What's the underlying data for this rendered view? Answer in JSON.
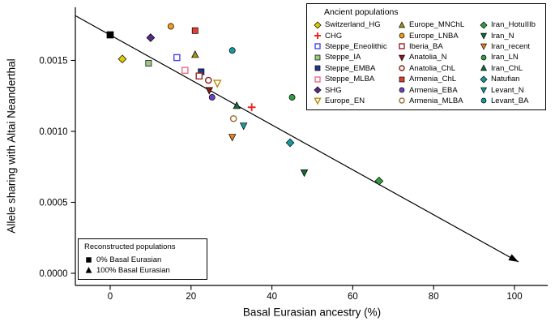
{
  "figure": {
    "x_axis_label": "Basal Eurasian ancestry (%)",
    "y_axis_label": "Allele sharing with Altai Neanderthal"
  },
  "legend": {
    "title": "Ancient populations"
  },
  "reconstructed_legend": {
    "title": "Reconstructed populations",
    "items": [
      {
        "label": "0% Basal Eurasian",
        "symbol": "square",
        "color": "#000000"
      },
      {
        "label": "100% Basal Eurasian",
        "symbol": "triangle-up",
        "color": "#000000"
      }
    ]
  },
  "chart_data": {
    "type": "scatter",
    "title": "",
    "xlabel": "Basal Eurasian ancestry (%)",
    "ylabel": "Allele sharing with Altai Neanderthal",
    "x_ticks": [
      0,
      20,
      40,
      60,
      80,
      100
    ],
    "y_ticks": [
      0.0,
      0.0005,
      0.001,
      0.0015
    ],
    "y_tick_labels": [
      "0.0000",
      "0.0005",
      "0.0010",
      "0.0015"
    ],
    "xlim": [
      -10,
      108
    ],
    "ylim": [
      0,
      0.00188
    ],
    "grid": false,
    "legend_position": "top-right",
    "series": [
      {
        "name": "Switzerland_HG",
        "symbol": "diamond",
        "color": "#ddcc00",
        "filled": true,
        "x": 3,
        "y": 0.00151
      },
      {
        "name": "CHG",
        "symbol": "plus",
        "color": "#ee2222",
        "filled": true,
        "x": 35,
        "y": 0.00117
      },
      {
        "name": "Steppe_Eneolithic",
        "symbol": "square",
        "color": "#4444ee",
        "filled": false,
        "x": 16.5,
        "y": 0.00152
      },
      {
        "name": "Steppe_IA",
        "symbol": "square",
        "color": "#97c983",
        "filled": true,
        "x": 9.5,
        "y": 0.00148
      },
      {
        "name": "Steppe_EMBA",
        "symbol": "square",
        "color": "#23368f",
        "filled": true,
        "x": 22.5,
        "y": 0.00142
      },
      {
        "name": "Steppe_MLBA",
        "symbol": "square",
        "color": "#ef6a87",
        "filled": false,
        "x": 18.5,
        "y": 0.00143
      },
      {
        "name": "SHG",
        "symbol": "diamond",
        "color": "#5a2a84",
        "filled": true,
        "x": 10,
        "y": 0.00166
      },
      {
        "name": "Europe_EN",
        "symbol": "triangle-down",
        "color": "#b8860b",
        "filled": false,
        "x": 26.5,
        "y": 0.00134
      },
      {
        "name": "Europe_MNChL",
        "symbol": "triangle-up",
        "color": "#a39018",
        "filled": true,
        "x": 21,
        "y": 0.00154
      },
      {
        "name": "Europe_LNBA",
        "symbol": "circle",
        "color": "#f09c17",
        "filled": true,
        "x": 15,
        "y": 0.00174
      },
      {
        "name": "Iberia_BA",
        "symbol": "square",
        "color": "#9e2121",
        "filled": false,
        "x": 22,
        "y": 0.00139
      },
      {
        "name": "Anatolia_N",
        "symbol": "triangle-down",
        "color": "#8c1a1a",
        "filled": true,
        "x": 24.5,
        "y": 0.00129
      },
      {
        "name": "Anatolia_ChL",
        "symbol": "circle",
        "color": "#8c1a1a",
        "filled": false,
        "x": 24.3,
        "y": 0.00136
      },
      {
        "name": "Armenia_ChL",
        "symbol": "square",
        "color": "#e23d2e",
        "filled": true,
        "x": 21,
        "y": 0.00171
      },
      {
        "name": "Armenia_EBA",
        "symbol": "circle",
        "color": "#6f42c1",
        "filled": true,
        "x": 25.2,
        "y": 0.00124
      },
      {
        "name": "Armenia_MLBA",
        "symbol": "circle",
        "color": "#9c6b30",
        "filled": false,
        "x": 30.5,
        "y": 0.00109
      },
      {
        "name": "Iran_HotuIIIb",
        "symbol": "diamond",
        "color": "#2e9e3f",
        "filled": true,
        "x": 66.5,
        "y": 0.00065
      },
      {
        "name": "Iran_N",
        "symbol": "triangle-down",
        "color": "#0f6b33",
        "filled": true,
        "x": 48,
        "y": 0.00071
      },
      {
        "name": "Iran_recent",
        "symbol": "triangle-down",
        "color": "#ef7f1a",
        "filled": true,
        "x": 30.2,
        "y": 0.00096
      },
      {
        "name": "Iran_LN",
        "symbol": "circle",
        "color": "#2e9e3f",
        "filled": true,
        "x": 45,
        "y": 0.00124
      },
      {
        "name": "Iran_ChL",
        "symbol": "triangle-up",
        "color": "#176b3a",
        "filled": true,
        "x": 31.3,
        "y": 0.00118
      },
      {
        "name": "Natufian",
        "symbol": "diamond",
        "color": "#1899a0",
        "filled": true,
        "x": 44.5,
        "y": 0.00092
      },
      {
        "name": "Levant_N",
        "symbol": "triangle-down",
        "color": "#1899a0",
        "filled": true,
        "x": 33,
        "y": 0.00104
      },
      {
        "name": "Levant_BA",
        "symbol": "circle",
        "color": "#1899a0",
        "filled": true,
        "x": 30.2,
        "y": 0.00157
      }
    ],
    "reconstructed_points": [
      {
        "label": "0% Basal Eurasian",
        "symbol": "square",
        "color": "#000000",
        "filled": true,
        "x": 0,
        "y": 0.00168
      }
    ],
    "trend_line": {
      "x1": -8.6,
      "y1": 0.001815,
      "x2": 101,
      "y2": 8e-05,
      "color": "#000000",
      "arrow_at_end": true
    }
  }
}
